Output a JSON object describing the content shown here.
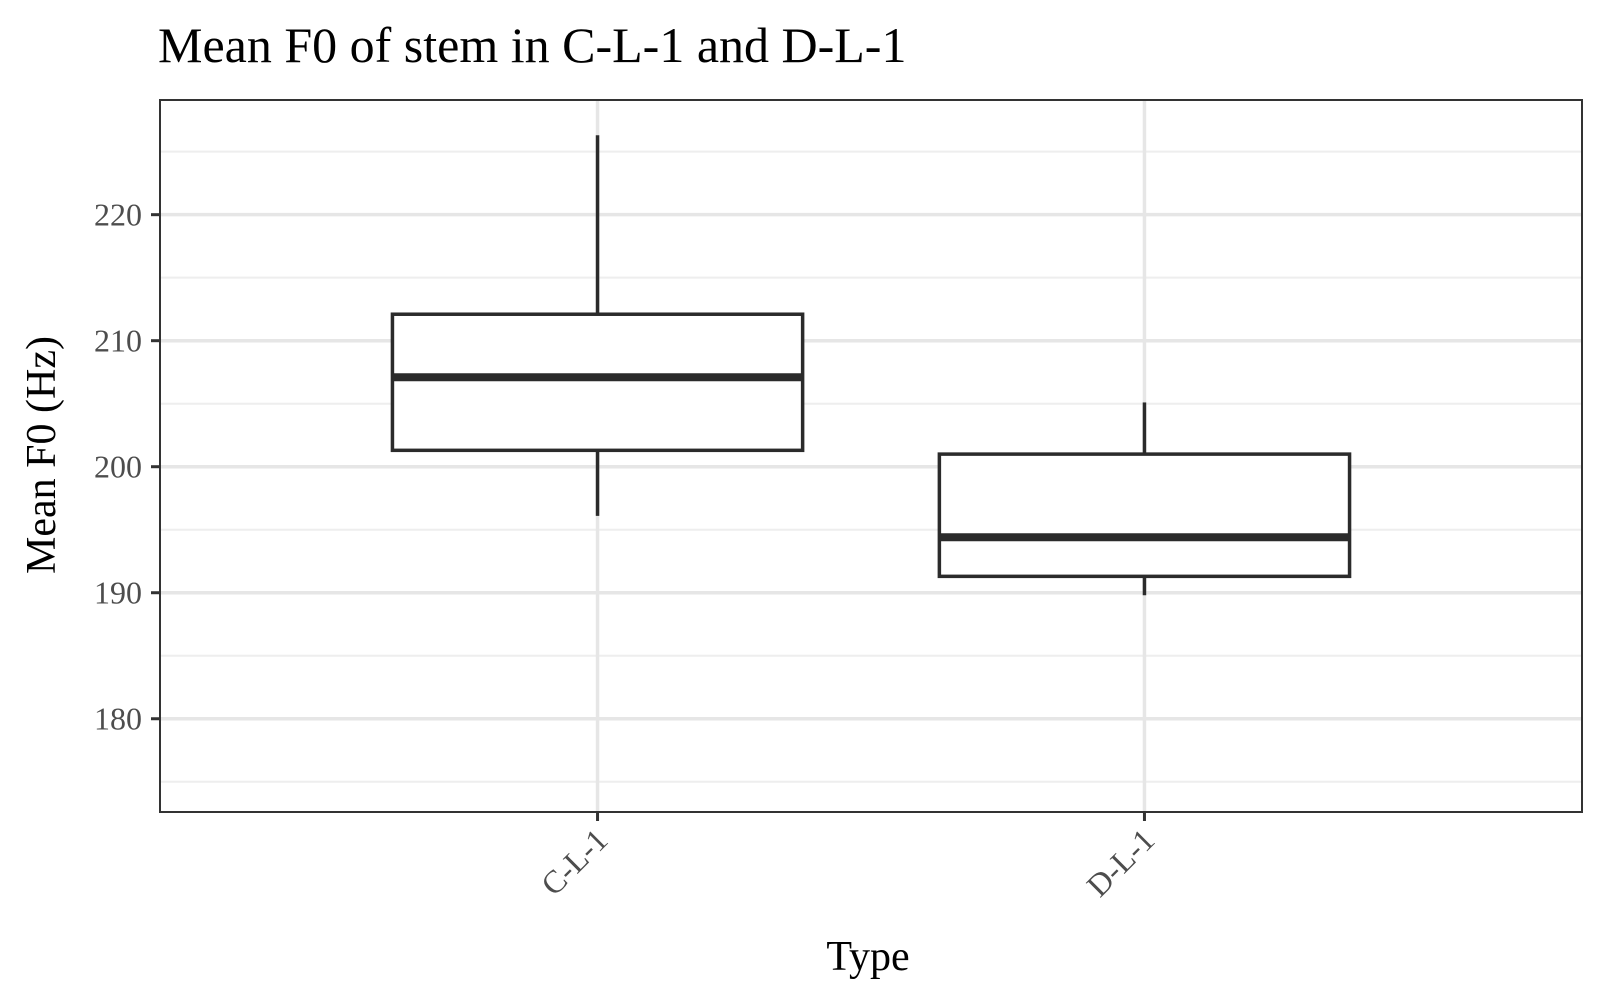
{
  "chart_data": {
    "type": "boxplot",
    "title": "Mean F0 of stem in C-L-1 and D-L-1",
    "xlabel": "Type",
    "ylabel": "Mean F0 (Hz)",
    "ylim": [
      172.6,
      229.1
    ],
    "yticks": [
      180,
      190,
      200,
      210,
      220
    ],
    "ytick_labels": [
      "180",
      "190",
      "200",
      "210",
      "220"
    ],
    "categories": [
      "C-L-1",
      "D-L-1"
    ],
    "boxes": [
      {
        "category": "C-L-1",
        "whisker_low": 196.1,
        "q1": 201.3,
        "median": 207.1,
        "q3": 212.1,
        "whisker_high": 226.3
      },
      {
        "category": "D-L-1",
        "whisker_low": 189.8,
        "q1": 191.3,
        "median": 194.4,
        "q3": 201.0,
        "whisker_high": 205.1
      }
    ],
    "grid": true,
    "legend": "none",
    "colors": {
      "box_fill": "#ffffff",
      "box_stroke": "#2b2b2b",
      "grid": "#e6e6e6",
      "border": "#333333"
    }
  }
}
